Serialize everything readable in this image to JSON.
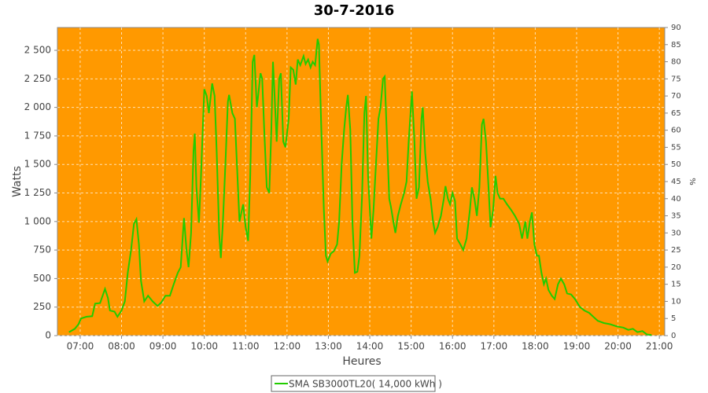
{
  "chart_data": {
    "type": "line",
    "title": "30-7-2016",
    "x_label": "Heures",
    "y_label": "Watts",
    "y2_label": "%",
    "xlim": [
      6.45,
      21.13
    ],
    "xticks": [
      {
        "value": 7,
        "label": "07:00"
      },
      {
        "value": 8,
        "label": "08:00"
      },
      {
        "value": 9,
        "label": "09:00"
      },
      {
        "value": 10,
        "label": "10:00"
      },
      {
        "value": 11,
        "label": "11:00"
      },
      {
        "value": 12,
        "label": "12:00"
      },
      {
        "value": 13,
        "label": "13:00"
      },
      {
        "value": 14,
        "label": "14:00"
      },
      {
        "value": 15,
        "label": "15:00"
      },
      {
        "value": 16,
        "label": "16:00"
      },
      {
        "value": 17,
        "label": "17:00"
      },
      {
        "value": 18,
        "label": "18:00"
      },
      {
        "value": 19,
        "label": "19:00"
      },
      {
        "value": 20,
        "label": "20:00"
      },
      {
        "value": 21,
        "label": "21:00"
      }
    ],
    "ylim": [
      0,
      2700
    ],
    "yticks": [
      0,
      250,
      500,
      750,
      {
        "value": 1000,
        "label": "1 000"
      },
      {
        "value": 1250,
        "label": "1 250"
      },
      {
        "value": 1500,
        "label": "1 500"
      },
      {
        "value": 1750,
        "label": "1 750"
      },
      {
        "value": 2000,
        "label": "2 000"
      },
      {
        "value": 2250,
        "label": "2 250"
      },
      {
        "value": 2500,
        "label": "2 500"
      }
    ],
    "y2lim": [
      0,
      90
    ],
    "y2ticks": [
      0,
      5,
      10,
      15,
      20,
      25,
      30,
      35,
      40,
      45,
      50,
      55,
      60,
      65,
      70,
      75,
      80,
      85,
      90
    ],
    "grid": true,
    "background": "#ff9900",
    "legend": "bottom",
    "series": [
      {
        "name": "SMA SB3000TL20( 14,000 kWh )",
        "color": "#22cc00",
        "x": [
          6.73,
          6.87,
          6.96,
          7.02,
          7.15,
          7.29,
          7.36,
          7.48,
          7.6,
          7.67,
          7.72,
          7.83,
          7.9,
          8.0,
          8.08,
          8.15,
          8.23,
          8.3,
          8.36,
          8.42,
          8.47,
          8.55,
          8.64,
          8.75,
          8.87,
          8.96,
          9.06,
          9.17,
          9.26,
          9.36,
          9.43,
          9.51,
          9.57,
          9.62,
          9.68,
          9.74,
          9.77,
          9.81,
          9.87,
          9.92,
          10.0,
          10.06,
          10.11,
          10.19,
          10.25,
          10.3,
          10.36,
          10.4,
          10.45,
          10.51,
          10.57,
          10.6,
          10.68,
          10.74,
          10.79,
          10.85,
          10.91,
          10.94,
          11.0,
          11.06,
          11.11,
          11.17,
          11.21,
          11.27,
          11.3,
          11.36,
          11.4,
          11.45,
          11.51,
          11.57,
          11.62,
          11.66,
          11.7,
          11.75,
          11.81,
          11.85,
          11.91,
          11.96,
          12.04,
          12.09,
          12.15,
          12.21,
          12.26,
          12.32,
          12.4,
          12.45,
          12.51,
          12.57,
          12.62,
          12.68,
          12.74,
          12.77,
          12.83,
          12.89,
          12.94,
          12.98,
          13.06,
          13.13,
          13.21,
          13.26,
          13.32,
          13.38,
          13.43,
          13.47,
          13.53,
          13.58,
          13.64,
          13.7,
          13.75,
          13.81,
          13.87,
          13.91,
          13.96,
          14.04,
          14.09,
          14.15,
          14.21,
          14.26,
          14.32,
          14.36,
          14.42,
          14.47,
          14.51,
          14.57,
          14.62,
          14.68,
          14.75,
          14.83,
          14.89,
          14.94,
          15.02,
          15.08,
          15.13,
          15.19,
          15.25,
          15.28,
          15.34,
          15.4,
          15.47,
          15.53,
          15.58,
          15.64,
          15.72,
          15.79,
          15.83,
          15.89,
          15.94,
          16.0,
          16.06,
          16.11,
          16.19,
          16.26,
          16.34,
          16.42,
          16.47,
          16.53,
          16.59,
          16.65,
          16.71,
          16.75,
          16.81,
          16.87,
          16.92,
          16.98,
          17.04,
          17.09,
          17.15,
          17.23,
          17.32,
          17.42,
          17.51,
          17.61,
          17.68,
          17.76,
          17.81,
          17.87,
          17.92,
          17.98,
          18.04,
          18.09,
          18.15,
          18.21,
          18.26,
          18.32,
          18.4,
          18.47,
          18.55,
          18.62,
          18.7,
          18.77,
          18.87,
          18.96,
          19.08,
          19.19,
          19.3,
          19.42,
          19.51,
          19.66,
          19.81,
          19.98,
          20.13,
          20.25,
          20.36,
          20.47,
          20.59,
          20.7,
          20.81
        ],
        "values": [
          30,
          60,
          100,
          150,
          165,
          170,
          280,
          285,
          410,
          330,
          220,
          210,
          165,
          220,
          300,
          550,
          750,
          980,
          1020,
          800,
          480,
          300,
          350,
          300,
          260,
          290,
          350,
          350,
          450,
          550,
          600,
          1030,
          750,
          600,
          900,
          1620,
          1770,
          1300,
          990,
          1400,
          2160,
          2100,
          1950,
          2210,
          2100,
          1600,
          900,
          680,
          1000,
          1500,
          2050,
          2110,
          1950,
          1900,
          1500,
          1000,
          1100,
          1150,
          950,
          830,
          1400,
          2400,
          2460,
          2000,
          2100,
          2300,
          2250,
          1800,
          1300,
          1250,
          1800,
          2400,
          2100,
          1700,
          2250,
          2300,
          1700,
          1650,
          1900,
          2350,
          2330,
          2200,
          2420,
          2370,
          2450,
          2380,
          2420,
          2350,
          2400,
          2370,
          2600,
          2550,
          1800,
          1100,
          700,
          650,
          720,
          740,
          800,
          1000,
          1500,
          1800,
          2000,
          2110,
          1800,
          1000,
          550,
          560,
          700,
          1200,
          1950,
          2100,
          1400,
          850,
          1100,
          1500,
          1900,
          2000,
          2250,
          2270,
          1700,
          1200,
          1130,
          1000,
          900,
          1050,
          1150,
          1250,
          1350,
          1700,
          2140,
          1700,
          1200,
          1300,
          1900,
          2000,
          1600,
          1350,
          1200,
          1000,
          900,
          950,
          1050,
          1200,
          1310,
          1200,
          1150,
          1250,
          1180,
          850,
          800,
          750,
          850,
          1100,
          1300,
          1200,
          1050,
          1300,
          1850,
          1900,
          1700,
          1300,
          950,
          1100,
          1400,
          1250,
          1200,
          1200,
          1150,
          1100,
          1050,
          980,
          850,
          1000,
          850,
          1000,
          1080,
          800,
          700,
          700,
          550,
          450,
          500,
          400,
          350,
          320,
          450,
          500,
          450,
          370,
          360,
          320,
          250,
          220,
          200,
          160,
          130,
          110,
          100,
          80,
          70,
          50,
          60,
          30,
          40,
          10,
          5
        ]
      }
    ]
  }
}
